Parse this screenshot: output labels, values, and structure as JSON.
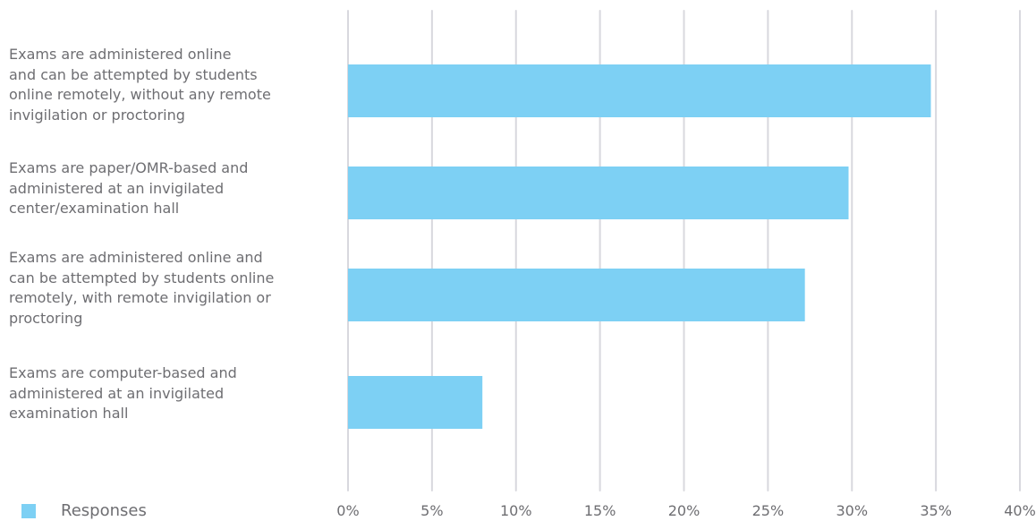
{
  "chart_data": {
    "type": "bar",
    "orientation": "horizontal",
    "categories": [
      "Exams are administered online\nand can be attempted by students\nonline remotely, without any remote\ninvigilation or proctoring",
      "Exams are paper/OMR-based and\nadministered at an invigilated\ncenter/examination hall",
      "Exams are administered online and\ncan be attempted by students online\nremotely, with remote invigilation or\nproctoring",
      "Exams are computer-based and\nadministered at an invigilated\nexamination hall"
    ],
    "series": [
      {
        "name": "Responses",
        "values": [
          34.7,
          29.8,
          27.2,
          8.0
        ]
      }
    ],
    "xlim": [
      0,
      40
    ],
    "x_ticks": [
      "0%",
      "5%",
      "10%",
      "15%",
      "20%",
      "25%",
      "30%",
      "35%",
      "40%"
    ],
    "grid": true,
    "legend_position": "bottom-left",
    "colors": {
      "bar": "#7dd0f4",
      "grid": "#d8d8de",
      "text": "#6e6e72"
    }
  }
}
